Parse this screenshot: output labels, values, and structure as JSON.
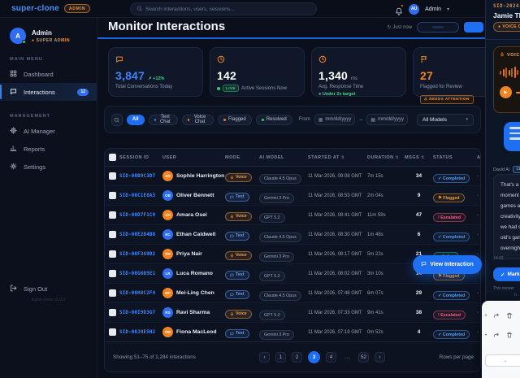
{
  "navbar": {
    "brand": "super-clone",
    "env_badge": "ADMIN",
    "search_placeholder": "Search interactions, users, sessions...",
    "user_initials": "AU",
    "user_name": "Admin"
  },
  "sidebar": {
    "profile": {
      "initial": "A",
      "name": "Admin",
      "role": "SUPER ADMIN"
    },
    "sections": [
      {
        "label": "MAIN MENU",
        "items": [
          {
            "icon": "grid-icon",
            "label": "Dashboard",
            "active": false
          },
          {
            "icon": "chat-icon",
            "label": "Interactions",
            "badge": "12",
            "active": true
          }
        ]
      },
      {
        "label": "MANAGEMENT",
        "items": [
          {
            "icon": "cpu-icon",
            "label": "AI Manager",
            "active": false
          },
          {
            "icon": "chart-icon",
            "label": "Reports",
            "active": false
          },
          {
            "icon": "gear-icon",
            "label": "Settings",
            "active": false
          }
        ]
      }
    ],
    "sign_out": "Sign Out",
    "version": "super-clone v1.0.0"
  },
  "header": {
    "title": "Monitor Interactions",
    "refreshed": "Just now"
  },
  "stats": [
    {
      "icon": "chat-icon",
      "value": "3,847",
      "value_color": "#3b82f6",
      "trend": "+12%",
      "label": "Total Conversations Today"
    },
    {
      "icon": "clock-icon",
      "value": "142",
      "live": "LIVE",
      "label": "Active Sessions Now"
    },
    {
      "icon": "clock-icon",
      "value": "1,340",
      "unit": "ms",
      "label": "Avg. Response Time",
      "foot": "Under 2s target"
    },
    {
      "icon": "flag-icon",
      "value": "27",
      "value_color": "#f5831f",
      "label": "Flagged for Review",
      "alert": "NEEDS ATTENTION"
    }
  ],
  "filters": {
    "chips": [
      {
        "label": "All",
        "active": true
      },
      {
        "label": "Text Chat",
        "dot": "#3b82f6"
      },
      {
        "label": "Voice Chat",
        "dot": "#f5831f"
      },
      {
        "label": "Flagged",
        "dot": "#f5831f"
      },
      {
        "label": "Resolved",
        "dot": "#2ecc71"
      }
    ],
    "from_label": "From",
    "date_placeholder": "mm/dd/yyyy",
    "range_separator": "–",
    "model_filter": "All Models"
  },
  "table": {
    "columns": [
      {
        "label": ""
      },
      {
        "label": "SESSION ID"
      },
      {
        "label": "USER"
      },
      {
        "label": "MODE"
      },
      {
        "label": "AI MODEL"
      },
      {
        "label": "STARTED AT",
        "sortable": true
      },
      {
        "label": "DURATION",
        "sortable": true
      },
      {
        "label": "MSGS",
        "sortable": true
      },
      {
        "label": "STATUS"
      },
      {
        "label": "ACTIONS"
      }
    ],
    "rows": [
      {
        "session": "SID-00B9C3D7",
        "initials": "SH",
        "avatar": "orange",
        "name": "Sophie Harrington",
        "mode": "Voice",
        "model": "Claude 4.5 Opus",
        "started": "11 Mar 2026, 09:08 GMT",
        "duration": "7m 15s",
        "msgs": "34",
        "status": "Completed"
      },
      {
        "session": "SID-00C1E8A3",
        "initials": "OB",
        "avatar": "blue",
        "name": "Oliver Bennett",
        "mode": "Text",
        "model": "Gemini 3 Pro",
        "started": "11 Mar 2026, 08:53 GMT",
        "duration": "2m 04s",
        "msgs": "9",
        "status": "Flagged"
      },
      {
        "session": "SID-00D7F1C9",
        "initials": "AO",
        "avatar": "orange",
        "name": "Amara Osei",
        "mode": "Voice",
        "model": "GPT 5.2",
        "started": "11 Mar 2026, 08:41 GMT",
        "duration": "11m 59s",
        "msgs": "47",
        "status": "Escalated"
      },
      {
        "session": "SID-00E2D4B8",
        "initials": "EC",
        "avatar": "blue",
        "name": "Ethan Caldwell",
        "mode": "Text",
        "model": "Claude 4.5 Opus",
        "started": "11 Mar 2026, 08:30 GMT",
        "duration": "1m 48s",
        "msgs": "6",
        "status": "Completed"
      },
      {
        "session": "SID-00F3A9D2",
        "initials": "PN",
        "avatar": "orange",
        "name": "Priya Nair",
        "mode": "Voice",
        "model": "Gemini 3 Pro",
        "started": "11 Mar 2026, 08:17 GMT",
        "duration": "5m 22s",
        "msgs": "21",
        "status": "Active"
      },
      {
        "session": "SID-00G6B5E1",
        "initials": "LR",
        "avatar": "blue",
        "name": "Luca Romano",
        "mode": "Text",
        "model": "GPT 5.2",
        "started": "11 Mar 2026, 08:02 GMT",
        "duration": "3m 10s",
        "msgs": "14",
        "status": "Flagged"
      },
      {
        "session": "SID-00H8C2F4",
        "initials": "MC",
        "avatar": "orange",
        "name": "Mei-Ling Chen",
        "mode": "Text",
        "model": "Claude 4.5 Opus",
        "started": "11 Mar 2026, 07:48 GMT",
        "duration": "6m 07s",
        "msgs": "29",
        "status": "Completed"
      },
      {
        "session": "SID-00I9D3G7",
        "initials": "RS",
        "avatar": "blue",
        "name": "Ravi Sharma",
        "mode": "Voice",
        "model": "GPT 5.2",
        "started": "11 Mar 2026, 07:33 GMT",
        "duration": "9m 41s",
        "msgs": "38",
        "status": "Escalated"
      },
      {
        "session": "SID-00J0E5H2",
        "initials": "FM",
        "avatar": "orange",
        "name": "Fiona MacLeod",
        "mode": "Text",
        "model": "Gemini 3 Pro",
        "started": "11 Mar 2026, 07:19 GMT",
        "duration": "0m 52s",
        "msgs": "4",
        "status": "Completed"
      }
    ]
  },
  "floating_action": {
    "label": "View Interaction"
  },
  "footer": {
    "showing": "Showing 51–75 of 1,284 interactions",
    "pages": [
      "‹",
      "1",
      "2",
      "3",
      "4",
      "…",
      "52",
      "›"
    ],
    "active_page": "3",
    "rows_per_page_label": "Rows per page"
  },
  "drawer": {
    "session_id": "SID-2024-0",
    "user_name": "Jamie Thor",
    "channel_badge": "VOICE CH",
    "voice_card_label": "VOICE I",
    "sender": "David AI",
    "sender_badge": "Clau",
    "message_lines": [
      "That's a bri",
      "moment wa",
      "games and",
      "creativity w",
      "we had son",
      "old's game",
      "overnight."
    ],
    "time": "14:02",
    "review_button": "Mark as Rev",
    "note_lines": [
      "This conver",
      "n"
    ]
  },
  "white_panel": {
    "action_rows": [
      [
        "dot-icon",
        "forward-icon",
        "trash-icon"
      ],
      [
        "dot-icon",
        "forward-icon",
        "trash-icon"
      ]
    ],
    "select_chevron": "⌄"
  }
}
